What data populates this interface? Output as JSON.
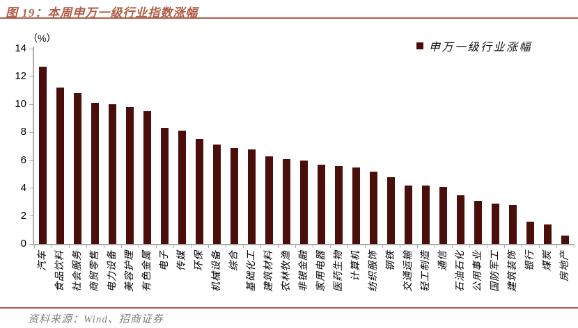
{
  "figure": {
    "title": "图 19：本周申万一级行业指数涨幅",
    "source": "资料来源：Wind、招商证券"
  },
  "chart_data": {
    "type": "bar",
    "title": "本周申万一级行业指数涨幅",
    "unit_label": "（%）",
    "legend": [
      "申万一级行业涨幅"
    ],
    "legend_position": "top-right",
    "grid": false,
    "ylim": [
      0,
      14
    ],
    "yticks": [
      0,
      2,
      4,
      6,
      8,
      10,
      12,
      14
    ],
    "categories": [
      "汽车",
      "食品饮料",
      "社会服务",
      "商贸零售",
      "电力设备",
      "美容护理",
      "有色金属",
      "电子",
      "传媒",
      "环保",
      "机械设备",
      "综合",
      "基础化工",
      "建筑材料",
      "农林牧渔",
      "非银金融",
      "家用电器",
      "医药生物",
      "计算机",
      "纺织服饰",
      "钢铁",
      "交通运输",
      "轻工制造",
      "通信",
      "石油石化",
      "公用事业",
      "国防军工",
      "建筑装饰",
      "银行",
      "煤炭",
      "房地产"
    ],
    "values": [
      12.7,
      11.2,
      10.8,
      10.1,
      10.0,
      9.8,
      9.5,
      8.3,
      8.1,
      7.5,
      7.1,
      6.9,
      6.8,
      6.3,
      6.1,
      6.0,
      5.7,
      5.6,
      5.5,
      5.2,
      4.8,
      4.2,
      4.2,
      4.1,
      3.5,
      3.1,
      2.9,
      2.8,
      1.6,
      1.4,
      0.6
    ],
    "bar_color": "#4a0f0b",
    "accent_color": "#b05c46",
    "axis_color": "#ababab",
    "source_text_color": "#7f7f7f"
  }
}
